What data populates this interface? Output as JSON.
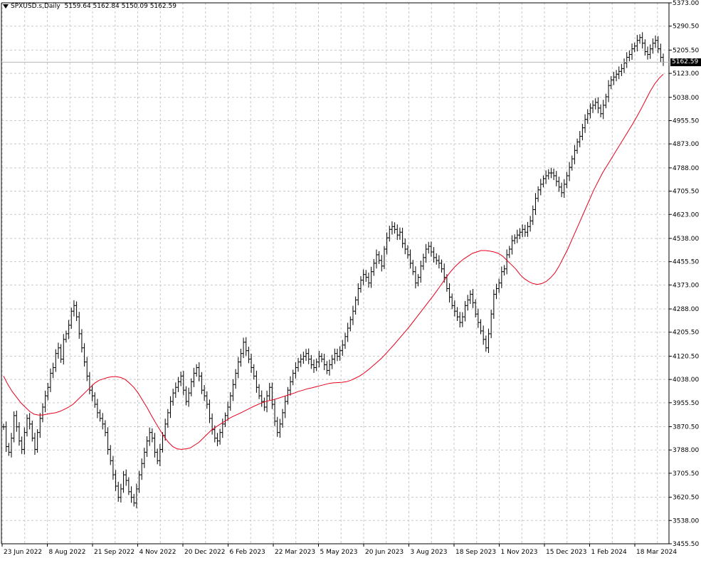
{
  "chart_data": {
    "type": "candlestick-bars",
    "title": "SPXUSD.s,Daily",
    "ohlc_readout": "5159.64 5162.84 5150.09 5162.59",
    "last_price": 5162.59,
    "y_ticks": [
      3455.5,
      3538.0,
      3620.5,
      3705.5,
      3788.0,
      3870.5,
      3955.5,
      4038.0,
      4120.5,
      4205.5,
      4288.0,
      4373.0,
      4455.5,
      4538.0,
      4623.0,
      4705.5,
      4788.0,
      4873.0,
      4955.5,
      5038.0,
      5123.0,
      5205.5,
      5290.5,
      5373.0
    ],
    "y_tick_labels": [
      "3455.50",
      "3538.00",
      "3620.50",
      "3705.50",
      "3788.00",
      "3870.50",
      "3955.50",
      "4038.00",
      "4120.50",
      "4205.50",
      "4288.00",
      "4373.00",
      "4455.50",
      "4538.00",
      "4623.00",
      "4705.50",
      "4788.00",
      "4873.00",
      "4955.50",
      "5038.00",
      "5123.00",
      "5205.50",
      "5290.50",
      "5373.00"
    ],
    "ylim": [
      3455.5,
      5373.0
    ],
    "x_tick_labels": [
      "23 Jun 2022",
      "8 Aug 2022",
      "21 Sep 2022",
      "4 Nov 2022",
      "20 Dec 2022",
      "6 Feb 2023",
      "22 Mar 2023",
      "5 May 2023",
      "20 Jun 2023",
      "3 Aug 2023",
      "18 Sep 2023",
      "1 Nov 2023",
      "15 Dec 2023",
      "1 Feb 2024",
      "18 Mar 2024"
    ],
    "grid": true,
    "series": [
      {
        "kind": "price-bars",
        "values": [
          3870,
          3800,
          3780,
          3830,
          3910,
          3870,
          3820,
          3790,
          3850,
          3900,
          3880,
          3830,
          3790,
          3850,
          3900,
          3940,
          3980,
          4010,
          4060,
          4080,
          4130,
          4150,
          4110,
          4180,
          4200,
          4230,
          4280,
          4300,
          4260,
          4200,
          4150,
          4100,
          4050,
          4000,
          3980,
          3950,
          3920,
          3900,
          3880,
          3850,
          3790,
          3750,
          3700,
          3660,
          3620,
          3650,
          3700,
          3680,
          3640,
          3620,
          3600,
          3650,
          3700,
          3740,
          3780,
          3820,
          3850,
          3830,
          3780,
          3750,
          3790,
          3840,
          3880,
          3920,
          3960,
          3990,
          4010,
          4030,
          4050,
          4000,
          3960,
          3990,
          4030,
          4060,
          4080,
          4050,
          4000,
          3980,
          3950,
          3900,
          3860,
          3830,
          3820,
          3850,
          3880,
          3910,
          3940,
          3980,
          4020,
          4060,
          4100,
          4130,
          4170,
          4140,
          4110,
          4080,
          4050,
          4010,
          3980,
          3960,
          3940,
          3980,
          4010,
          3950,
          3890,
          3850,
          3880,
          3920,
          3960,
          4000,
          4030,
          4060,
          4080,
          4100,
          4110,
          4120,
          4130,
          4110,
          4090,
          4080,
          4100,
          4120,
          4110,
          4090,
          4070,
          4090,
          4110,
          4130,
          4120,
          4140,
          4160,
          4190,
          4220,
          4250,
          4280,
          4320,
          4360,
          4390,
          4410,
          4400,
          4380,
          4420,
          4450,
          4480,
          4460,
          4440,
          4500,
          4540,
          4570,
          4580,
          4570,
          4550,
          4560,
          4520,
          4500,
          4480,
          4450,
          4420,
          4380,
          4400,
          4440,
          4470,
          4500,
          4510,
          4490,
          4470,
          4460,
          4450,
          4430,
          4400,
          4360,
          4330,
          4300,
          4280,
          4260,
          4240,
          4260,
          4300,
          4320,
          4340,
          4310,
          4270,
          4240,
          4210,
          4180,
          4150,
          4200,
          4270,
          4340,
          4360,
          4380,
          4420,
          4430,
          4480,
          4500,
          4530,
          4540,
          4550,
          4560,
          4570,
          4560,
          4580,
          4600,
          4640,
          4680,
          4710,
          4730,
          4750,
          4760,
          4770,
          4770,
          4760,
          4740,
          4720,
          4700,
          4730,
          4760,
          4790,
          4820,
          4850,
          4880,
          4900,
          4930,
          4960,
          4980,
          5000,
          5010,
          5020,
          5000,
          4980,
          5010,
          5040,
          5080,
          5100,
          5110,
          5120,
          5130,
          5140,
          5160,
          5180,
          5190,
          5210,
          5220,
          5240,
          5250,
          5230,
          5200,
          5190,
          5210,
          5230,
          5240,
          5210,
          5180,
          5162.59
        ]
      },
      {
        "kind": "moving-average",
        "color": "#e8001c",
        "values": [
          4050,
          4020,
          3995,
          3975,
          3955,
          3940,
          3925,
          3915,
          3912,
          3912,
          3915,
          3918,
          3920,
          3925,
          3932,
          3940,
          3950,
          3965,
          3980,
          3995,
          4010,
          4025,
          4035,
          4040,
          4045,
          4048,
          4048,
          4045,
          4038,
          4025,
          4010,
          3990,
          3965,
          3940,
          3912,
          3885,
          3860,
          3835,
          3815,
          3800,
          3792,
          3790,
          3792,
          3795,
          3805,
          3815,
          3830,
          3845,
          3860,
          3870,
          3880,
          3890,
          3900,
          3908,
          3915,
          3922,
          3930,
          3938,
          3945,
          3952,
          3958,
          3962,
          3966,
          3970,
          3975,
          3980,
          3985,
          3990,
          3996,
          4000,
          4005,
          4008,
          4012,
          4016,
          4020,
          4024,
          4026,
          4027,
          4028,
          4030,
          4035,
          4042,
          4050,
          4060,
          4072,
          4085,
          4098,
          4112,
          4128,
          4145,
          4162,
          4180,
          4198,
          4216,
          4235,
          4255,
          4275,
          4295,
          4315,
          4335,
          4356,
          4378,
          4400,
          4420,
          4438,
          4452,
          4465,
          4475,
          4485,
          4490,
          4495,
          4495,
          4493,
          4490,
          4485,
          4475,
          4460,
          4445,
          4430,
          4410,
          4395,
          4385,
          4378,
          4375,
          4378,
          4385,
          4398,
          4415,
          4440,
          4470,
          4500,
          4535,
          4570,
          4605,
          4640,
          4675,
          4710,
          4740,
          4770,
          4795,
          4820,
          4845,
          4870,
          4895,
          4920,
          4945,
          4972,
          5000,
          5030,
          5060,
          5085,
          5105,
          5120
        ]
      }
    ]
  }
}
